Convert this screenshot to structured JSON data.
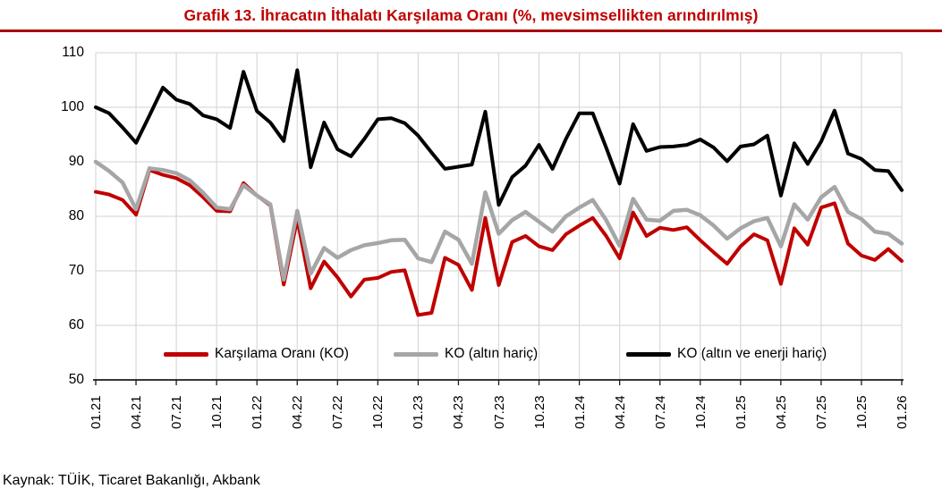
{
  "header": {
    "title": "Grafik 13. İhracatın İthalatı Karşılama Oranı (%, mevsimsellikten arındırılmış)"
  },
  "footer": {
    "source": "Kaynak: TÜİK, Ticaret Bakanlığı, Akbank"
  },
  "colors": {
    "title": "#C00000",
    "rule": "#A80000",
    "gridline": "#D9D9D9",
    "axis": "#1a1a1a"
  },
  "chart_data": {
    "type": "line",
    "title": "Grafik 13. İhracatın İthalatı Karşılama Oranı (%, mevsimsellikten arındırılmış)",
    "ylim": [
      50,
      110
    ],
    "yticks": [
      50,
      60,
      70,
      80,
      90,
      100,
      110
    ],
    "grid": true,
    "legend_position": "bottom-inside",
    "x_note": "monthly points from 01.21 to 01.26, labels every 3rd month",
    "x_tick_labels": [
      "01.21",
      "04.21",
      "07.21",
      "10.21",
      "01.22",
      "04.22",
      "07.22",
      "10.22",
      "01.23",
      "04.23",
      "07.23",
      "10.23",
      "01.24",
      "04.24",
      "07.24",
      "10.24",
      "01.25",
      "04.25",
      "07.25",
      "10.25",
      "01.26"
    ],
    "series": [
      {
        "name": "Karşılama Oranı (KO)",
        "color": "#C00000",
        "values": [
          84.5,
          84,
          83,
          80.3,
          88.5,
          87.6,
          87,
          85.7,
          83.5,
          81,
          80.9,
          86.1,
          83.8,
          82,
          67.5,
          79.5,
          66.8,
          71.7,
          68.8,
          65.3,
          68.4,
          68.7,
          69.8,
          70.1,
          61.9,
          62.3,
          72.4,
          71.1,
          66.5,
          79.7,
          67.4,
          75.3,
          76.4,
          74.5,
          73.8,
          76.7,
          78.3,
          79.7,
          76.4,
          72.3,
          80.7,
          76.4,
          77.9,
          77.5,
          78,
          75.6,
          73.4,
          71.3,
          74.5,
          76.7,
          75.6,
          67.6,
          77.8,
          74.8,
          81.6,
          82.4,
          75,
          72.8,
          72,
          74,
          71.8
        ]
      },
      {
        "name": "KO (altın hariç)",
        "color": "#A6A6A6",
        "values": [
          90,
          88.3,
          86.2,
          81.3,
          88.8,
          88.5,
          87.9,
          86.6,
          84.3,
          81.6,
          81.3,
          85.7,
          83.8,
          82.2,
          68.4,
          81,
          69.5,
          74.2,
          72.4,
          73.8,
          74.7,
          75.1,
          75.6,
          75.7,
          72.3,
          71.6,
          77.2,
          75.7,
          71.3,
          84.4,
          76.8,
          79.3,
          80.8,
          79,
          77.2,
          80,
          81.6,
          83,
          79.3,
          74.6,
          83.2,
          79.4,
          79.2,
          81,
          81.2,
          80.2,
          78.3,
          75.9,
          77.8,
          79.1,
          79.7,
          74.5,
          82.2,
          79.4,
          83.5,
          85.4,
          80.8,
          79.5,
          77.2,
          76.8,
          75
        ]
      },
      {
        "name": "KO (altın ve enerji hariç)",
        "color": "#000000",
        "values": [
          100,
          98.9,
          96.3,
          93.5,
          98.5,
          103.6,
          101.4,
          100.6,
          98.5,
          97.8,
          96.2,
          106.5,
          99.3,
          97.2,
          93.8,
          106.8,
          89,
          97.2,
          92.3,
          91,
          94.2,
          97.8,
          98,
          97.1,
          94.8,
          91.7,
          88.7,
          89.1,
          89.5,
          99.2,
          82.1,
          87.2,
          89.3,
          93.1,
          88.7,
          94.2,
          98.9,
          98.9,
          92.6,
          86,
          96.9,
          92,
          92.7,
          92.8,
          93.1,
          94.1,
          92.6,
          90.1,
          92.8,
          93.2,
          94.8,
          83.8,
          93.4,
          89.6,
          93.7,
          99.4,
          91.5,
          90.5,
          88.5,
          88.3,
          84.8
        ]
      }
    ]
  }
}
